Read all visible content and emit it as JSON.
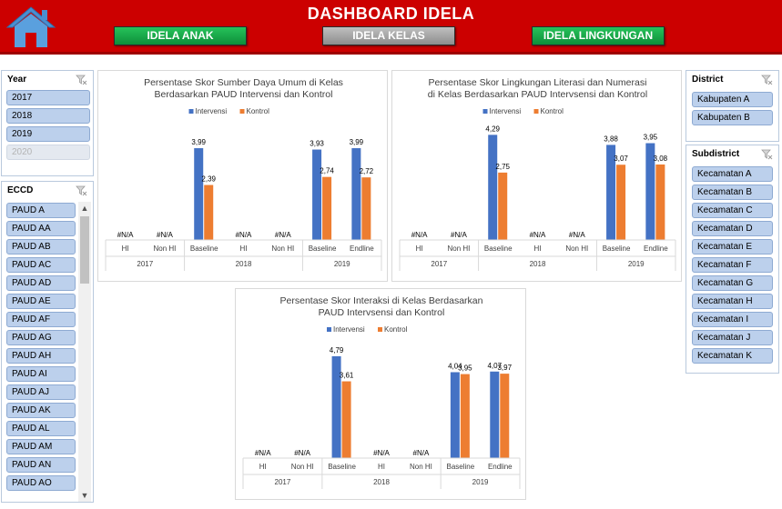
{
  "header": {
    "title": "DASHBOARD IDELA",
    "nav": [
      {
        "label": "IDELA ANAK"
      },
      {
        "label": "IDELA KELAS"
      },
      {
        "label": "IDELA LINGKUNGAN"
      }
    ],
    "home_icon": "house-icon",
    "colors": {
      "header_bg": "#cc0000",
      "button_green": "#17a647",
      "button_grey": "#a6a6a6"
    }
  },
  "slicers": {
    "year": {
      "title": "Year",
      "items": [
        "2017",
        "2018",
        "2019",
        "2020"
      ],
      "disabled": [
        "2020"
      ]
    },
    "eccd": {
      "title": "ECCD",
      "items": [
        "PAUD A",
        "PAUD AA",
        "PAUD AB",
        "PAUD AC",
        "PAUD AD",
        "PAUD AE",
        "PAUD AF",
        "PAUD AG",
        "PAUD AH",
        "PAUD AI",
        "PAUD AJ",
        "PAUD AK",
        "PAUD AL",
        "PAUD AM",
        "PAUD AN",
        "PAUD AO"
      ]
    },
    "district": {
      "title": "District",
      "items": [
        "Kabupaten A",
        "Kabupaten B"
      ]
    },
    "subdistrict": {
      "title": "Subdistrict",
      "items": [
        "Kecamatan A",
        "Kecamatan B",
        "Kecamatan C",
        "Kecamatan D",
        "Kecamatan E",
        "Kecamatan F",
        "Kecamatan G",
        "Kecamatan H",
        "Kecamatan I",
        "Kecamatan J",
        "Kecamatan K"
      ]
    },
    "filter_icon": "clear-filter-icon"
  },
  "chart_data": [
    {
      "type": "bar",
      "title": [
        "Persentase Skor Sumber Daya Umum di Kelas",
        "Berdasarkan PAUD Intervensi dan Kontrol"
      ],
      "categories": [
        "HI",
        "Non HI",
        "Baseline",
        "HI",
        "Non HI",
        "Baseline",
        "Endline"
      ],
      "groups": [
        {
          "label": "2017",
          "span": 2
        },
        {
          "label": "2018",
          "span": 3
        },
        {
          "label": "2019",
          "span": 2
        }
      ],
      "series": [
        {
          "name": "Intervensi",
          "color": "#4472c4",
          "values": [
            null,
            null,
            3.99,
            null,
            null,
            3.93,
            3.99
          ],
          "labels": [
            "#N/A",
            "#N/A",
            "3,99",
            "#N/A",
            "#N/A",
            "3,93",
            "3,99"
          ]
        },
        {
          "name": "Kontrol",
          "color": "#ed7d31",
          "values": [
            null,
            null,
            2.39,
            null,
            null,
            2.74,
            2.72
          ],
          "labels": [
            "",
            "",
            "2,39",
            "",
            "",
            "2,74",
            "2,72"
          ]
        }
      ],
      "ylim": [
        0,
        4.9
      ],
      "legend": "top"
    },
    {
      "type": "bar",
      "title": [
        "Persentase Skor Lingkungan Literasi dan Numerasi",
        "di Kelas Berdasarkan PAUD Intervsensi dan Kontrol"
      ],
      "categories": [
        "HI",
        "Non HI",
        "Baseline",
        "HI",
        "Non HI",
        "Baseline",
        "Endline"
      ],
      "groups": [
        {
          "label": "2017",
          "span": 2
        },
        {
          "label": "2018",
          "span": 3
        },
        {
          "label": "2019",
          "span": 2
        }
      ],
      "series": [
        {
          "name": "Intervensi",
          "color": "#4472c4",
          "values": [
            null,
            null,
            4.29,
            null,
            null,
            3.88,
            3.95
          ],
          "labels": [
            "#N/A",
            "#N/A",
            "4,29",
            "#N/A",
            "#N/A",
            "3,88",
            "3,95"
          ]
        },
        {
          "name": "Kontrol",
          "color": "#ed7d31",
          "values": [
            null,
            null,
            2.75,
            null,
            null,
            3.07,
            3.08
          ],
          "labels": [
            "",
            "",
            "2,75",
            "",
            "",
            "3,07",
            "3,08"
          ]
        }
      ],
      "ylim": [
        0,
        4.6
      ],
      "legend": "top"
    },
    {
      "type": "bar",
      "title": [
        "Persentase Skor Interaksi di Kelas Berdasarkan",
        "PAUD Intervsensi dan Kontrol"
      ],
      "categories": [
        "HI",
        "Non HI",
        "Baseline",
        "HI",
        "Non HI",
        "Baseline",
        "Endline"
      ],
      "groups": [
        {
          "label": "2017",
          "span": 2
        },
        {
          "label": "2018",
          "span": 3
        },
        {
          "label": "2019",
          "span": 2
        }
      ],
      "series": [
        {
          "name": "Intervensi",
          "color": "#4472c4",
          "values": [
            null,
            null,
            4.79,
            null,
            null,
            4.04,
            4.07
          ],
          "labels": [
            "#N/A",
            "#N/A",
            "4,79",
            "#N/A",
            "#N/A",
            "4,04",
            "4,07"
          ]
        },
        {
          "name": "Kontrol",
          "color": "#ed7d31",
          "values": [
            null,
            null,
            3.61,
            null,
            null,
            3.95,
            3.97
          ],
          "labels": [
            "",
            "",
            "3,61",
            "",
            "",
            "3,95",
            "3,97"
          ]
        }
      ],
      "ylim": [
        0,
        5.3
      ],
      "legend": "top"
    }
  ]
}
